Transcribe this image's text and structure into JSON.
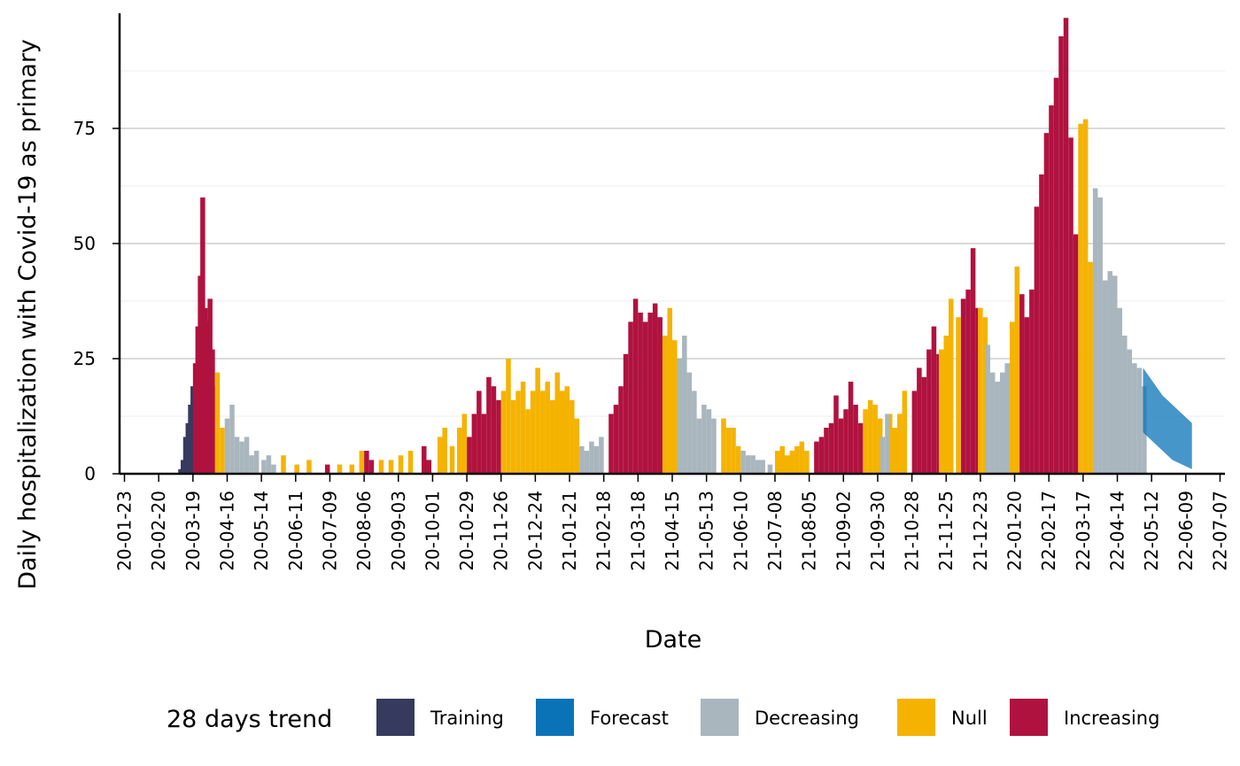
{
  "chart_data": {
    "type": "bar",
    "title": "",
    "xlabel": "Date",
    "ylabel": "Daily hospitalization with Covid-19 as primary",
    "ylim": [
      0,
      100
    ],
    "yticks": [
      0,
      25,
      50,
      75
    ],
    "x_range": [
      "2020-01-19",
      "2022-07-11"
    ],
    "x_tick_labels": [
      "20-01-23",
      "20-02-20",
      "20-03-19",
      "20-04-16",
      "20-05-14",
      "20-06-11",
      "20-07-09",
      "20-08-06",
      "20-09-03",
      "20-10-01",
      "20-10-29",
      "20-11-26",
      "20-12-24",
      "21-01-21",
      "21-02-18",
      "21-03-18",
      "21-04-15",
      "21-05-13",
      "21-06-10",
      "21-07-08",
      "21-08-05",
      "21-09-02",
      "21-09-30",
      "21-10-28",
      "21-11-25",
      "21-12-23",
      "22-01-20",
      "22-02-17",
      "22-03-17",
      "22-04-14",
      "22-05-12",
      "22-06-09",
      "22-07-07"
    ],
    "grid": "horizontal",
    "legend": {
      "title": "28 days trend",
      "position": "bottom",
      "entries": [
        {
          "label": "Training",
          "color": "#363a5e"
        },
        {
          "label": "Forecast",
          "color": "#0a73b8"
        },
        {
          "label": "Decreasing",
          "color": "#a9b6bd"
        },
        {
          "label": "Null",
          "color": "#f5b300"
        },
        {
          "label": "Increasing",
          "color": "#b0123f"
        }
      ]
    },
    "series": [
      {
        "name": "Training",
        "color": "#363a5e",
        "points": [
          [
            "2020-03-07",
            1
          ],
          [
            "2020-03-09",
            3
          ],
          [
            "2020-03-11",
            8
          ],
          [
            "2020-03-13",
            11
          ],
          [
            "2020-03-15",
            15
          ],
          [
            "2020-03-17",
            19
          ]
        ]
      },
      {
        "name": "Increasing",
        "color": "#b0123f",
        "points": [
          [
            "2020-03-19",
            24
          ],
          [
            "2020-03-21",
            32
          ],
          [
            "2020-03-23",
            43
          ],
          [
            "2020-03-25",
            60
          ],
          [
            "2020-03-27",
            36
          ],
          [
            "2020-03-29",
            33
          ],
          [
            "2020-03-31",
            38
          ],
          [
            "2020-04-02",
            27
          ],
          [
            "2020-04-04",
            19
          ],
          [
            "2020-07-05",
            2
          ],
          [
            "2020-08-06",
            5
          ],
          [
            "2020-08-10",
            3
          ],
          [
            "2020-09-22",
            6
          ],
          [
            "2020-09-26",
            3
          ],
          [
            "2020-10-29",
            8
          ],
          [
            "2020-11-02",
            13
          ],
          [
            "2020-11-06",
            18
          ],
          [
            "2020-11-10",
            13
          ],
          [
            "2020-11-14",
            21
          ],
          [
            "2020-11-18",
            19
          ],
          [
            "2020-11-22",
            16
          ],
          [
            "2021-02-22",
            13
          ],
          [
            "2021-02-26",
            15
          ],
          [
            "2021-03-02",
            19
          ],
          [
            "2021-03-06",
            26
          ],
          [
            "2021-03-10",
            33
          ],
          [
            "2021-03-14",
            38
          ],
          [
            "2021-03-18",
            35
          ],
          [
            "2021-03-22",
            33
          ],
          [
            "2021-03-26",
            35
          ],
          [
            "2021-03-30",
            37
          ],
          [
            "2021-04-03",
            34
          ],
          [
            "2021-08-09",
            7
          ],
          [
            "2021-08-13",
            8
          ],
          [
            "2021-08-17",
            10
          ],
          [
            "2021-08-21",
            11
          ],
          [
            "2021-08-25",
            17
          ],
          [
            "2021-08-29",
            12
          ],
          [
            "2021-09-02",
            14
          ],
          [
            "2021-09-06",
            20
          ],
          [
            "2021-09-10",
            15
          ],
          [
            "2021-09-14",
            11
          ],
          [
            "2021-10-28",
            18
          ],
          [
            "2021-11-01",
            23
          ],
          [
            "2021-11-05",
            21
          ],
          [
            "2021-11-09",
            27
          ],
          [
            "2021-11-13",
            32
          ],
          [
            "2021-11-17",
            26
          ],
          [
            "2021-12-07",
            38
          ],
          [
            "2021-12-11",
            40
          ],
          [
            "2021-12-15",
            49
          ],
          [
            "2021-12-19",
            36
          ],
          [
            "2022-01-24",
            39
          ],
          [
            "2022-01-28",
            34
          ],
          [
            "2022-02-01",
            40
          ],
          [
            "2022-02-05",
            58
          ],
          [
            "2022-02-09",
            65
          ],
          [
            "2022-02-13",
            74
          ],
          [
            "2022-02-17",
            80
          ],
          [
            "2022-02-21",
            86
          ],
          [
            "2022-02-25",
            95
          ],
          [
            "2022-03-01",
            99
          ],
          [
            "2022-03-05",
            73
          ],
          [
            "2022-03-09",
            52
          ]
        ]
      },
      {
        "name": "Null",
        "color": "#f5b300",
        "points": [
          [
            "2020-04-06",
            22
          ],
          [
            "2020-04-10",
            10
          ],
          [
            "2020-05-30",
            4
          ],
          [
            "2020-06-10",
            2
          ],
          [
            "2020-06-20",
            3
          ],
          [
            "2020-07-15",
            2
          ],
          [
            "2020-07-25",
            2
          ],
          [
            "2020-08-02",
            5
          ],
          [
            "2020-08-18",
            3
          ],
          [
            "2020-08-26",
            3
          ],
          [
            "2020-09-03",
            4
          ],
          [
            "2020-09-11",
            5
          ],
          [
            "2020-10-05",
            8
          ],
          [
            "2020-10-09",
            10
          ],
          [
            "2020-10-15",
            6
          ],
          [
            "2020-10-21",
            10
          ],
          [
            "2020-10-25",
            13
          ],
          [
            "2020-11-26",
            18
          ],
          [
            "2020-11-30",
            25
          ],
          [
            "2020-12-04",
            16
          ],
          [
            "2020-12-08",
            18
          ],
          [
            "2020-12-12",
            20
          ],
          [
            "2020-12-16",
            14
          ],
          [
            "2020-12-20",
            18
          ],
          [
            "2020-12-24",
            23
          ],
          [
            "2020-12-28",
            18
          ],
          [
            "2021-01-01",
            20
          ],
          [
            "2021-01-05",
            16
          ],
          [
            "2021-01-09",
            22
          ],
          [
            "2021-01-13",
            18
          ],
          [
            "2021-01-17",
            19
          ],
          [
            "2021-01-21",
            16
          ],
          [
            "2021-01-25",
            12
          ],
          [
            "2021-04-07",
            30
          ],
          [
            "2021-04-11",
            36
          ],
          [
            "2021-04-15",
            29
          ],
          [
            "2021-05-25",
            12
          ],
          [
            "2021-05-29",
            10
          ],
          [
            "2021-06-02",
            10
          ],
          [
            "2021-06-06",
            6
          ],
          [
            "2021-07-08",
            5
          ],
          [
            "2021-07-12",
            6
          ],
          [
            "2021-07-16",
            4
          ],
          [
            "2021-07-20",
            5
          ],
          [
            "2021-07-24",
            6
          ],
          [
            "2021-07-28",
            7
          ],
          [
            "2021-08-01",
            5
          ],
          [
            "2021-09-18",
            14
          ],
          [
            "2021-09-22",
            16
          ],
          [
            "2021-09-26",
            15
          ],
          [
            "2021-09-30",
            12
          ],
          [
            "2021-10-08",
            13
          ],
          [
            "2021-10-12",
            10
          ],
          [
            "2021-10-16",
            13
          ],
          [
            "2021-10-20",
            18
          ],
          [
            "2021-11-19",
            27
          ],
          [
            "2021-11-23",
            30
          ],
          [
            "2021-11-27",
            38
          ],
          [
            "2021-12-03",
            34
          ],
          [
            "2021-12-21",
            36
          ],
          [
            "2021-12-25",
            34
          ],
          [
            "2022-01-16",
            33
          ],
          [
            "2022-01-20",
            45
          ],
          [
            "2022-03-13",
            76
          ],
          [
            "2022-03-17",
            77
          ],
          [
            "2022-03-21",
            46
          ]
        ]
      },
      {
        "name": "Decreasing",
        "color": "#a9b6bd",
        "points": [
          [
            "2020-04-14",
            12
          ],
          [
            "2020-04-18",
            15
          ],
          [
            "2020-04-22",
            8
          ],
          [
            "2020-04-26",
            7
          ],
          [
            "2020-04-30",
            8
          ],
          [
            "2020-05-04",
            4
          ],
          [
            "2020-05-08",
            5
          ],
          [
            "2020-05-14",
            3
          ],
          [
            "2020-05-18",
            4
          ],
          [
            "2020-05-22",
            2
          ],
          [
            "2021-01-29",
            6
          ],
          [
            "2021-02-02",
            5
          ],
          [
            "2021-02-06",
            7
          ],
          [
            "2021-02-10",
            6
          ],
          [
            "2021-02-14",
            8
          ],
          [
            "2021-04-19",
            25
          ],
          [
            "2021-04-23",
            30
          ],
          [
            "2021-04-27",
            22
          ],
          [
            "2021-05-01",
            18
          ],
          [
            "2021-05-05",
            12
          ],
          [
            "2021-05-09",
            15
          ],
          [
            "2021-05-13",
            14
          ],
          [
            "2021-05-17",
            12
          ],
          [
            "2021-06-10",
            5
          ],
          [
            "2021-06-14",
            4
          ],
          [
            "2021-06-18",
            4
          ],
          [
            "2021-06-22",
            3
          ],
          [
            "2021-06-26",
            3
          ],
          [
            "2021-07-02",
            2
          ],
          [
            "2021-10-02",
            8
          ],
          [
            "2021-10-06",
            13
          ],
          [
            "2021-12-27",
            28
          ],
          [
            "2021-12-31",
            22
          ],
          [
            "2022-01-04",
            20
          ],
          [
            "2022-01-08",
            22
          ],
          [
            "2022-01-12",
            24
          ],
          [
            "2022-03-25",
            62
          ],
          [
            "2022-03-29",
            60
          ],
          [
            "2022-04-02",
            42
          ],
          [
            "2022-04-06",
            44
          ],
          [
            "2022-04-10",
            43
          ],
          [
            "2022-04-14",
            36
          ],
          [
            "2022-04-18",
            30
          ],
          [
            "2022-04-22",
            27
          ],
          [
            "2022-04-26",
            24
          ],
          [
            "2022-04-30",
            23
          ],
          [
            "2022-05-04",
            19
          ]
        ]
      },
      {
        "name": "Forecast",
        "color": "#0a73b8",
        "upper": [
          [
            "2022-05-05",
            23
          ],
          [
            "2022-05-13",
            20
          ],
          [
            "2022-05-21",
            17
          ],
          [
            "2022-05-29",
            15
          ],
          [
            "2022-06-06",
            13
          ],
          [
            "2022-06-14",
            11
          ]
        ],
        "lower": [
          [
            "2022-05-05",
            9
          ],
          [
            "2022-05-13",
            7
          ],
          [
            "2022-05-21",
            5
          ],
          [
            "2022-05-29",
            3
          ],
          [
            "2022-06-06",
            2
          ],
          [
            "2022-06-14",
            1
          ]
        ]
      }
    ]
  }
}
